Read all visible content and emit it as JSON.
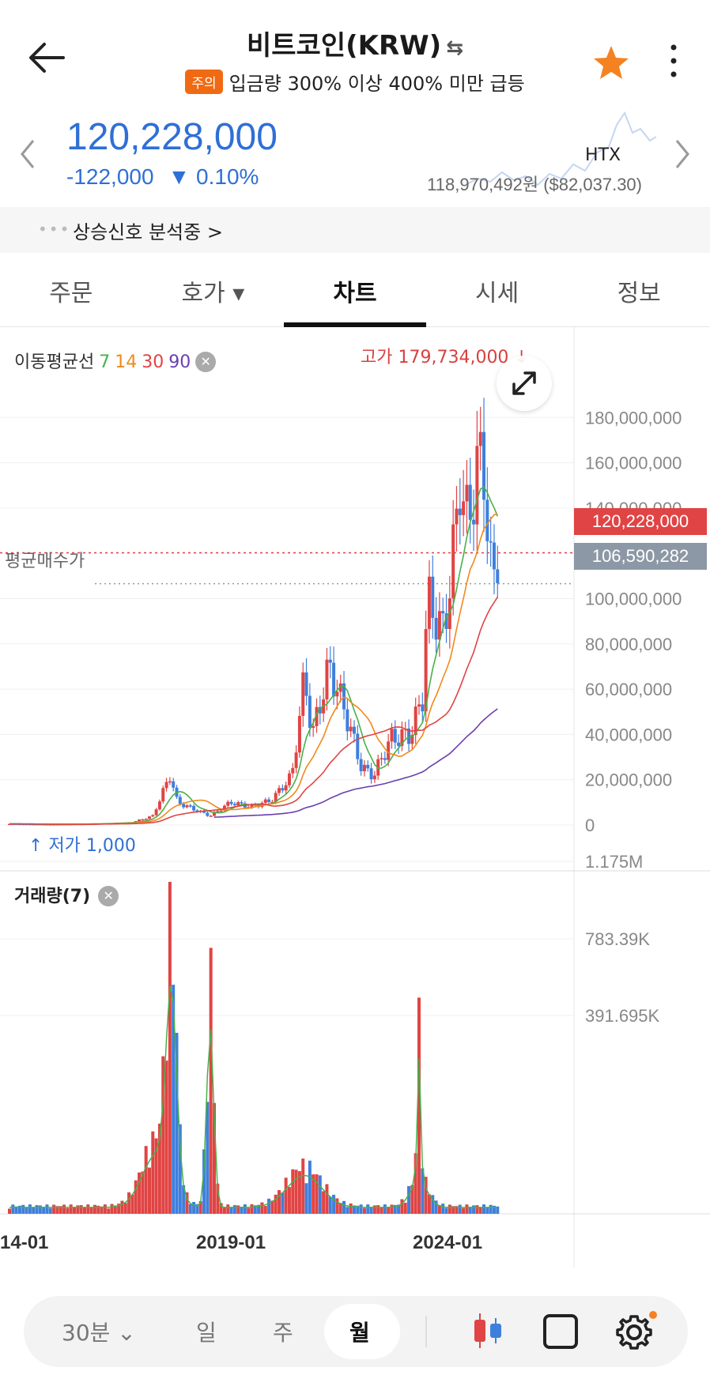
{
  "header": {
    "title": "비트코인(KRW)",
    "swap_icon": "⇆",
    "warning_badge": "주의",
    "warning_text": "입금량 300% 이상 400% 미만 급등"
  },
  "price": {
    "current": "120,228,000",
    "change": "-122,000",
    "change_pct": "▼ 0.10%",
    "external_price": "118,970,492원 ($82,037.30)",
    "exchange": "HTX"
  },
  "signal": {
    "text": "상승신호 분석중 >"
  },
  "tabs": [
    "주문",
    "호가 ▾",
    "차트",
    "시세",
    "정보"
  ],
  "active_tab": "차트",
  "chart": {
    "ma_label": "이동평균선",
    "ma_periods": [
      "7",
      "14",
      "30",
      "90"
    ],
    "ma_colors": [
      "#49b04a",
      "#f08a1c",
      "#e04444",
      "#6a3fb0"
    ],
    "high_label": "고가 179,734,000",
    "low_label": "저가 1,000",
    "avg_label": "평균매수가",
    "current_tag": "120,228,000",
    "avg_tag": "106,590,282",
    "volume_label": "거래량(7)",
    "price_axis": [
      "180,000,000",
      "160,000,000",
      "140,000,000",
      "120,000,000",
      "100,000,000",
      "80,000,000",
      "60,000,000",
      "40,000,000",
      "20,000,000",
      "0"
    ],
    "volume_axis": [
      "1.175M",
      "783.39K",
      "391.695K"
    ],
    "x_axis": [
      "14-01",
      "2019-01",
      "2024-01"
    ],
    "up_color": "#e04444",
    "down_color": "#3f7fdc"
  },
  "chart_data": {
    "type": "candlestick",
    "title": "",
    "xlabel": "",
    "ylabel": "",
    "ylim": [
      0,
      190000000
    ],
    "x_ticks": [
      "14-01",
      "2019-01",
      "2024-01"
    ],
    "close_series_krw": [
      [
        2014,
        500000
      ],
      [
        2015,
        300000
      ],
      [
        2016,
        500000
      ],
      [
        2017,
        1200000
      ],
      [
        2017.5,
        4000000
      ],
      [
        2017.92,
        22000000
      ],
      [
        2018.1,
        10000000
      ],
      [
        2018.5,
        7000000
      ],
      [
        2018.9,
        4000000
      ],
      [
        2019.4,
        10000000
      ],
      [
        2019.9,
        8000000
      ],
      [
        2020.4,
        11000000
      ],
      [
        2020.9,
        22000000
      ],
      [
        2021.2,
        65000000
      ],
      [
        2021.4,
        40000000
      ],
      [
        2021.8,
        70000000
      ],
      [
        2022.2,
        50000000
      ],
      [
        2022.6,
        25000000
      ],
      [
        2022.9,
        22000000
      ],
      [
        2023.3,
        38000000
      ],
      [
        2023.8,
        40000000
      ],
      [
        2024.1,
        58000000
      ],
      [
        2024.2,
        100000000
      ],
      [
        2024.6,
        85000000
      ],
      [
        2024.9,
        130000000
      ],
      [
        2025.0,
        155000000
      ],
      [
        2025.2,
        130000000
      ],
      [
        2025.4,
        160000000
      ],
      [
        2025.6,
        155000000
      ],
      [
        2025.8,
        100000000
      ],
      [
        2025.9,
        120228000
      ]
    ],
    "volume_axis_ticks": [
      "1.175M",
      "783.39K",
      "391.695K"
    ]
  },
  "bottom_bar": {
    "interval": "30분",
    "day": "일",
    "week": "주",
    "month": "월"
  }
}
